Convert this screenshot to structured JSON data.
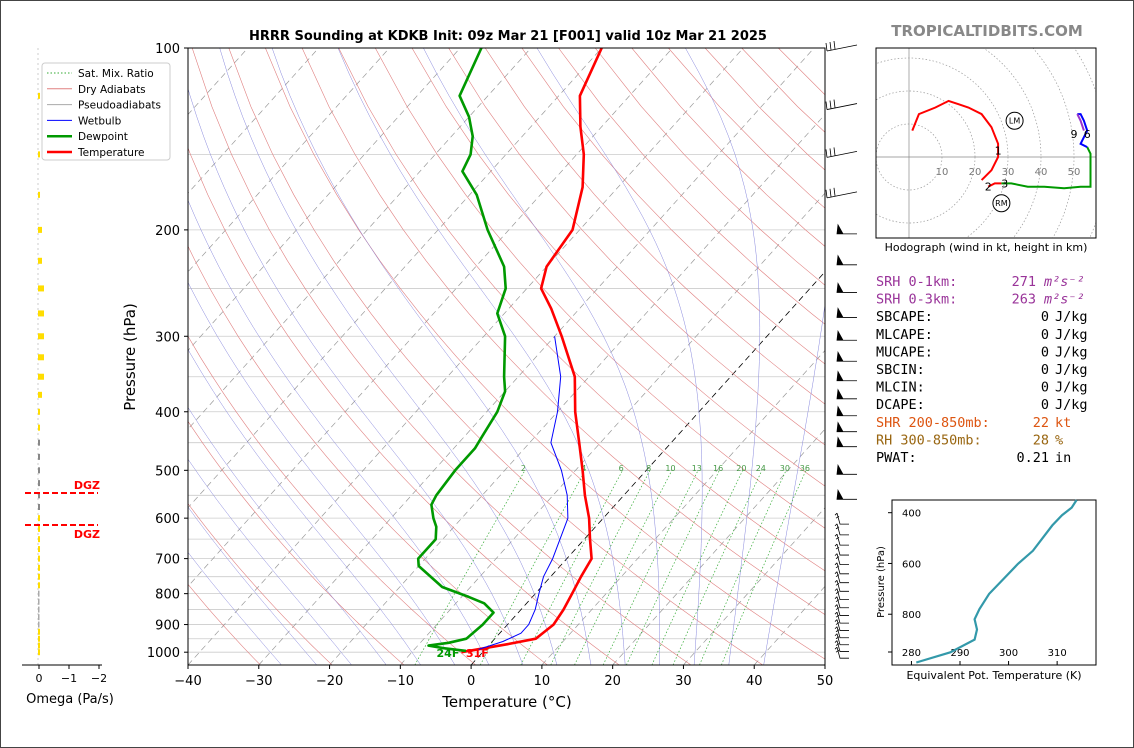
{
  "title": "HRRR Sounding at KDKB Init: 09z Mar 21 [F001] valid 10z Mar 21 2025",
  "site": "TROPICALTIDBITS.COM",
  "colors": {
    "temperature": "#ff0000",
    "dewpoint": "#009900",
    "wetbulb": "#0000ff",
    "dry_adiabat": "#e08080",
    "moist_adiabat": "#aaaaaa",
    "mixing_ratio": "#33aa33",
    "isotherm_zero": "#000000",
    "omega": "#ffdd00",
    "theta_e": "#3399aa",
    "srh": "#993399",
    "shear": "#dd5511",
    "rh": "#996611"
  },
  "legend": [
    {
      "key": "mix",
      "label": "Sat. Mix. Ratio"
    },
    {
      "key": "dry",
      "label": "Dry Adiabats"
    },
    {
      "key": "pseudo",
      "label": "Pseudoadiabats"
    },
    {
      "key": "wet",
      "label": "Wetbulb"
    },
    {
      "key": "dew",
      "label": "Dewpoint"
    },
    {
      "key": "temp",
      "label": "Temperature"
    }
  ],
  "surface_labels": {
    "dewpoint": "24F",
    "temperature": "31F"
  },
  "chart_data": [
    {
      "type": "line",
      "name": "skew-t",
      "xlabel": "Temperature (°C)",
      "ylabel": "Pressure (hPa)",
      "xlim": [
        -40,
        50
      ],
      "ylim": [
        1050,
        100
      ],
      "y_scale": "log",
      "x_ticks": [
        -40,
        -30,
        -20,
        -10,
        0,
        10,
        20,
        30,
        40,
        50
      ],
      "y_ticks": [
        100,
        200,
        300,
        400,
        500,
        600,
        700,
        800,
        900,
        1000
      ],
      "mixing_ratio_labels": [
        "2",
        "4",
        "6",
        "8",
        "10",
        "13",
        "16",
        "20",
        "24",
        "30",
        "36"
      ],
      "series": [
        {
          "name": "Temperature",
          "points": [
            [
              -3,
              1000
            ],
            [
              2.5,
              970
            ],
            [
              5.8,
              950
            ],
            [
              6.5,
              900
            ],
            [
              6,
              850
            ],
            [
              5.2,
              800
            ],
            [
              4.3,
              750
            ],
            [
              3.5,
              700
            ],
            [
              0.8,
              650
            ],
            [
              -2,
              600
            ],
            [
              -5.5,
              550
            ],
            [
              -9,
              500
            ],
            [
              -13,
              450
            ],
            [
              -17.5,
              400
            ],
            [
              -22,
              350
            ],
            [
              -29,
              300
            ],
            [
              -34,
              270
            ],
            [
              -38,
              250
            ],
            [
              -40,
              230
            ],
            [
              -41,
              200
            ],
            [
              -45,
              170
            ],
            [
              -49,
              150
            ],
            [
              -53,
              135
            ],
            [
              -57,
              120
            ],
            [
              -60,
              100
            ]
          ]
        },
        {
          "name": "Dewpoint",
          "points": [
            [
              -2.5,
              995
            ],
            [
              -6,
              985
            ],
            [
              -8.5,
              975
            ],
            [
              -6,
              965
            ],
            [
              -4,
              950
            ],
            [
              -3.5,
              900
            ],
            [
              -3.5,
              860
            ],
            [
              -6,
              830
            ],
            [
              -9,
              810
            ],
            [
              -14,
              780
            ],
            [
              -20,
              720
            ],
            [
              -21,
              700
            ],
            [
              -21,
              680
            ],
            [
              -21,
              650
            ],
            [
              -22.5,
              620
            ],
            [
              -24,
              600
            ],
            [
              -26,
              570
            ],
            [
              -26.5,
              550
            ],
            [
              -27,
              500
            ],
            [
              -27,
              460
            ],
            [
              -27.5,
              440
            ],
            [
              -28.5,
              400
            ],
            [
              -30,
              370
            ],
            [
              -32,
              350
            ],
            [
              -37,
              300
            ],
            [
              -41,
              275
            ],
            [
              -43,
              250
            ],
            [
              -46,
              230
            ],
            [
              -53,
              200
            ],
            [
              -59,
              175
            ],
            [
              -64,
              160
            ],
            [
              -65,
              150
            ],
            [
              -67,
              140
            ],
            [
              -70,
              130
            ],
            [
              -74,
              120
            ],
            [
              -77,
              100
            ]
          ]
        },
        {
          "name": "Wetbulb",
          "points": [
            [
              -1,
              990
            ],
            [
              1.5,
              960
            ],
            [
              3,
              930
            ],
            [
              3,
              900
            ],
            [
              2,
              850
            ],
            [
              0.5,
              800
            ],
            [
              -1,
              750
            ],
            [
              -2,
              700
            ],
            [
              -5,
              600
            ],
            [
              -8,
              550
            ],
            [
              -12,
              500
            ],
            [
              -17,
              450
            ],
            [
              -20,
              400
            ],
            [
              -24,
              350
            ],
            [
              -30,
              300
            ]
          ]
        }
      ]
    },
    {
      "type": "line",
      "name": "omega",
      "xlabel": "Omega (Pa/s)",
      "x_ticks": [
        "0",
        "−1",
        "−2"
      ],
      "annotations": [
        "DGZ",
        "DGZ"
      ]
    },
    {
      "type": "line",
      "name": "hodograph",
      "xlabel": "Hodograph (wind in kt, height in km)",
      "ring_labels": [
        "10",
        "20",
        "30",
        "40",
        "50"
      ],
      "height_labels": [
        "1",
        "2",
        "3",
        "6",
        "9"
      ],
      "markers": [
        "LM",
        "RM"
      ]
    },
    {
      "type": "line",
      "name": "theta-e",
      "xlabel": "Equivalent Pot. Temperature (K)",
      "ylabel": "Pressure (hPa)",
      "x_ticks": [
        280,
        290,
        300,
        310
      ],
      "y_ticks": [
        400,
        600,
        800
      ],
      "series": [
        {
          "name": "theta-e",
          "points": [
            [
              281,
              990
            ],
            [
              288,
              950
            ],
            [
              293,
              900
            ],
            [
              293.5,
              860
            ],
            [
              293,
              820
            ],
            [
              294,
              780
            ],
            [
              296,
              720
            ],
            [
              299,
              660
            ],
            [
              302,
              600
            ],
            [
              305,
              550
            ],
            [
              307,
              500
            ],
            [
              309,
              450
            ],
            [
              311,
              410
            ],
            [
              313,
              380
            ],
            [
              314,
              350
            ]
          ]
        }
      ]
    }
  ],
  "indices": [
    {
      "label": "SRH 0-1km:",
      "value": "271",
      "unit": "m²s⁻²",
      "color": "#993399"
    },
    {
      "label": "SRH 0-3km:",
      "value": "263",
      "unit": "m²s⁻²",
      "color": "#993399"
    },
    {
      "label": "SBCAPE:",
      "value": "0",
      "unit": "J/kg",
      "color": "#000000"
    },
    {
      "label": "MLCAPE:",
      "value": "0",
      "unit": "J/kg",
      "color": "#000000"
    },
    {
      "label": "MUCAPE:",
      "value": "0",
      "unit": "J/kg",
      "color": "#000000"
    },
    {
      "label": "SBCIN:",
      "value": "0",
      "unit": "J/kg",
      "color": "#000000"
    },
    {
      "label": "MLCIN:",
      "value": "0",
      "unit": "J/kg",
      "color": "#000000"
    },
    {
      "label": "DCAPE:",
      "value": "0",
      "unit": "J/kg",
      "color": "#000000"
    },
    {
      "label": "SHR 200-850mb:",
      "value": "22",
      "unit": "kt",
      "color": "#dd5511"
    },
    {
      "label": "RH 300-850mb:",
      "value": "28",
      "unit": "%",
      "color": "#996611"
    },
    {
      "label": "PWAT:",
      "value": "0.21",
      "unit": "in",
      "color": "#000000"
    }
  ]
}
